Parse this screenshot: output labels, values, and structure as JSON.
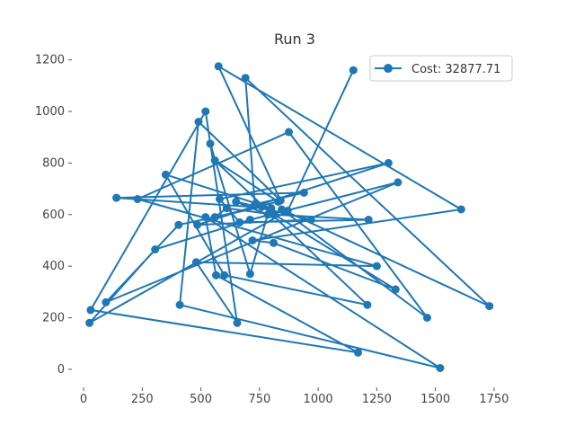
{
  "chart_data": {
    "type": "line",
    "title": "Run 3",
    "xlabel": "",
    "ylabel": "",
    "xlim": [
      -50,
      1850
    ],
    "ylim": [
      -70,
      1230
    ],
    "xticks": [
      0,
      250,
      500,
      750,
      1000,
      1250,
      1500,
      1750
    ],
    "yticks": [
      0,
      200,
      400,
      600,
      800,
      1000,
      1200
    ],
    "xtick_labels": [
      "0",
      "250",
      "500",
      "750",
      "1000",
      "1250",
      "1500",
      "1750"
    ],
    "ytick_labels": [
      "0",
      "200",
      "400",
      "600",
      "800",
      "1000",
      "1200"
    ],
    "grid": false,
    "legend_position": "top-right",
    "color": "#1f77b4",
    "series": [
      {
        "name": "Cost: 32877.71",
        "x": [
          1150,
          870,
          25,
          305,
          710,
          1340,
          95,
          405,
          760,
          1330,
          810,
          720,
          1610,
          575,
          840,
          490,
          410,
          1520,
          520,
          565,
          1170,
          30,
          520,
          655,
          480,
          1250,
          230,
          875,
          1465,
          845,
          1730,
          690,
          730,
          940,
          140,
          800,
          350,
          600,
          1210,
          560,
          830,
          560,
          610,
          810,
          1215,
          665,
          580,
          1300,
          485,
          970,
          650,
          785,
          710,
          540
        ],
        "y": [
          1160,
          615,
          180,
          465,
          580,
          725,
          260,
          560,
          630,
          310,
          490,
          500,
          620,
          1175,
          655,
          960,
          250,
          5,
          590,
          365,
          65,
          230,
          1000,
          180,
          415,
          400,
          660,
          920,
          200,
          620,
          245,
          1130,
          640,
          685,
          665,
          625,
          755,
          365,
          250,
          810,
          650,
          590,
          625,
          600,
          580,
          570,
          660,
          800,
          560,
          580,
          650,
          600,
          370,
          875
        ]
      }
    ]
  }
}
